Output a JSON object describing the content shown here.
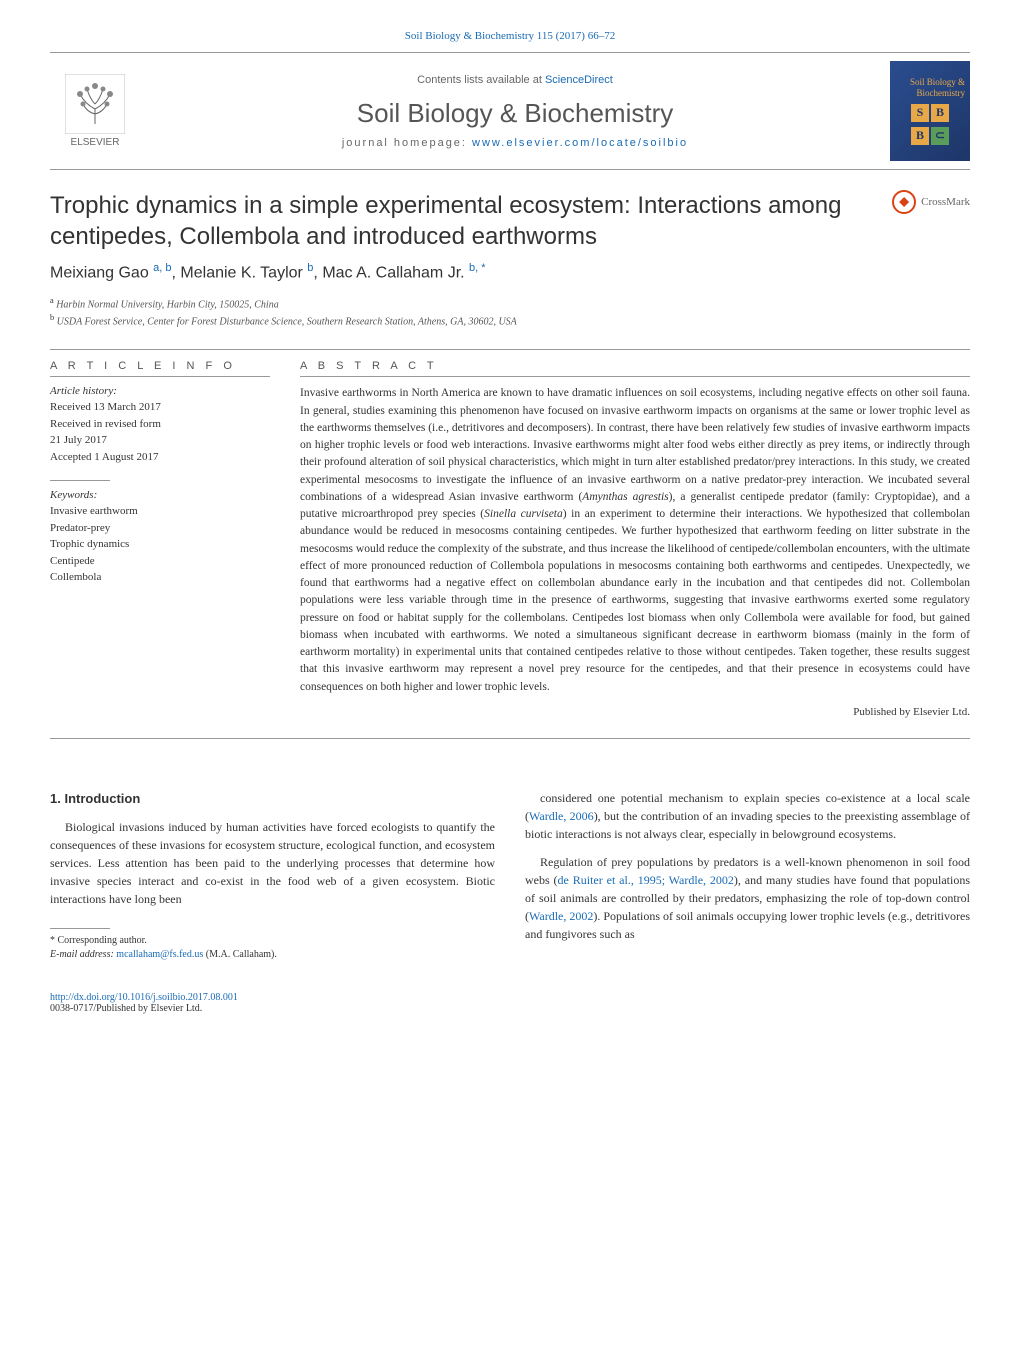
{
  "header": {
    "citation": "Soil Biology & Biochemistry 115 (2017) 66–72",
    "contents_prefix": "Contents lists available at ",
    "contents_link": "ScienceDirect",
    "journal_name": "Soil Biology & Biochemistry",
    "homepage_prefix": "journal homepage: ",
    "homepage_url": "www.elsevier.com/locate/soilbio",
    "publisher_text": "ELSEVIER",
    "cover_text": "Soil Biology & Biochemistry"
  },
  "crossmark": {
    "label": "CrossMark"
  },
  "article": {
    "title": "Trophic dynamics in a simple experimental ecosystem: Interactions among centipedes, Collembola and introduced earthworms",
    "authors_html": "Meixiang Gao <sup>a, b</sup>, Melanie K. Taylor <sup>b</sup>, Mac A. Callaham Jr. <sup>b, *</sup>",
    "affiliations": [
      {
        "sup": "a",
        "text": " Harbin Normal University, Harbin City, 150025, China"
      },
      {
        "sup": "b",
        "text": " USDA Forest Service, Center for Forest Disturbance Science, Southern Research Station, Athens, GA, 30602, USA"
      }
    ]
  },
  "info": {
    "header": "A R T I C L E   I N F O",
    "history_label": "Article history:",
    "history": [
      "Received 13 March 2017",
      "Received in revised form",
      "21 July 2017",
      "Accepted 1 August 2017"
    ],
    "keywords_label": "Keywords:",
    "keywords": [
      "Invasive earthworm",
      "Predator-prey",
      "Trophic dynamics",
      "Centipede",
      "Collembola"
    ]
  },
  "abstract": {
    "header": "A B S T R A C T",
    "text_html": "Invasive earthworms in North America are known to have dramatic influences on soil ecosystems, including negative effects on other soil fauna. In general, studies examining this phenomenon have focused on invasive earthworm impacts on organisms at the same or lower trophic level as the earthworms themselves (i.e., detritivores and decomposers). In contrast, there have been relatively few studies of invasive earthworm impacts on higher trophic levels or food web interactions. Invasive earthworms might alter food webs either directly as prey items, or indirectly through their profound alteration of soil physical characteristics, which might in turn alter established predator/prey interactions. In this study, we created experimental mesocosms to investigate the influence of an invasive earthworm on a native predator-prey interaction. We incubated several combinations of a widespread Asian invasive earthworm (<span class=\"italic\">Amynthas agrestis</span>), a generalist centipede predator (family: Cryptopidae), and a putative microarthropod prey species (<span class=\"italic\">Sinella curviseta</span>) in an experiment to determine their interactions. We hypothesized that collembolan abundance would be reduced in mesocosms containing centipedes. We further hypothesized that earthworm feeding on litter substrate in the mesocosms would reduce the complexity of the substrate, and thus increase the likelihood of centipede/collembolan encounters, with the ultimate effect of more pronounced reduction of Collembola populations in mesocosms containing both earthworms and centipedes. Unexpectedly, we found that earthworms had a negative effect on collembolan abundance early in the incubation and that centipedes did not. Collembolan populations were less variable through time in the presence of earthworms, suggesting that invasive earthworms exerted some regulatory pressure on food or habitat supply for the collembolans. Centipedes lost biomass when only Collembola were available for food, but gained biomass when incubated with earthworms. We noted a simultaneous significant decrease in earthworm biomass (mainly in the form of earthworm mortality) in experimental units that contained centipedes relative to those without centipedes. Taken together, these results suggest that this invasive earthworm may represent a novel prey resource for the centipedes, and that their presence in ecosystems could have consequences on both higher and lower trophic levels.",
    "published_by": "Published by Elsevier Ltd."
  },
  "body": {
    "section_heading": "1. Introduction",
    "col1_p1_html": "Biological invasions induced by human activities have forced ecologists to quantify the consequences of these invasions for ecosystem structure, ecological function, and ecosystem services. Less attention has been paid to the underlying processes that determine how invasive species interact and co-exist in the food web of a given ecosystem. Biotic interactions have long been",
    "col2_p1_html": "considered one potential mechanism to explain species co-existence at a local scale (<span class=\"ref\">Wardle, 2006</span>), but the contribution of an invading species to the preexisting assemblage of biotic interactions is not always clear, especially in belowground ecosystems.",
    "col2_p2_html": "Regulation of prey populations by predators is a well-known phenomenon in soil food webs (<span class=\"ref\">de Ruiter et al., 1995; Wardle, 2002</span>), and many studies have found that populations of soil animals are controlled by their predators, emphasizing the role of top-down control (<span class=\"ref\">Wardle, 2002</span>). Populations of soil animals occupying lower trophic levels (e.g., detritivores and fungivores such as"
  },
  "footnote": {
    "corresponding": "* Corresponding author.",
    "email_label": "E-mail address: ",
    "email": "mcallaham@fs.fed.us",
    "email_suffix": " (M.A. Callaham)."
  },
  "footer": {
    "doi": "http://dx.doi.org/10.1016/j.soilbio.2017.08.001",
    "issn": "0038-0717/Published by Elsevier Ltd."
  },
  "colors": {
    "link": "#1a6bb5",
    "text": "#333333",
    "muted": "#666666",
    "crossmark": "#d84315",
    "cover_bg_start": "#2a4d8f",
    "cover_bg_end": "#1e3668",
    "cover_accent": "#e8a848"
  }
}
